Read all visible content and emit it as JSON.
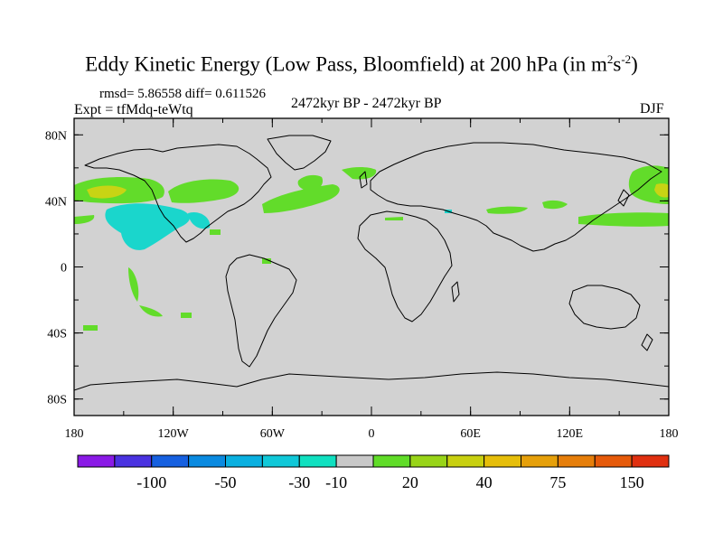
{
  "title": {
    "main": "Eddy Kinetic Energy (Low Pass, Bloomfield) at 200 hPa (in m",
    "sup1": "2",
    "mid": "s",
    "sup2": "-2",
    "end": ")"
  },
  "stats": "rmsd= 5.86558 diff= 0.611526",
  "expt": "Expt = tfMdq-teWtq",
  "period": "2472kyr BP - 2472kyr BP",
  "season": "DJF",
  "lat_labels": [
    "80N",
    "40N",
    "0",
    "40S",
    "80S"
  ],
  "lon_labels": [
    "180",
    "120W",
    "60W",
    "0",
    "60E",
    "120E",
    "180"
  ],
  "colorbar": {
    "colors": [
      "#8a1ae6",
      "#4a32e0",
      "#1660e0",
      "#0a8ae0",
      "#0ab0e0",
      "#10c8d8",
      "#10e0c0",
      "#c8c8c8",
      "#60dc28",
      "#98d418",
      "#c8d010",
      "#e6be0a",
      "#e6a00a",
      "#e67e0a",
      "#e65a0a",
      "#e03010"
    ],
    "labels": [
      "-100",
      "-50",
      "-30",
      "-10",
      "20",
      "40",
      "75",
      "150"
    ]
  },
  "map": {
    "ocean_color": "#d2d2d2",
    "positive_color": "#62dc2a",
    "strong_color": "#c8d414",
    "negative_color": "#1ad6cc"
  }
}
